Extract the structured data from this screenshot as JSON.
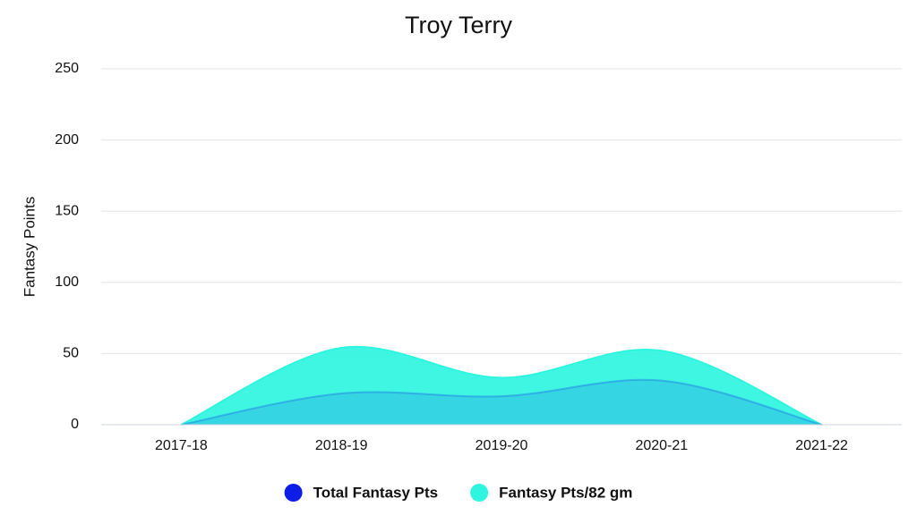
{
  "chart_data": {
    "type": "area",
    "title": "Troy Terry",
    "y_label": "Fantasy Points",
    "categories": [
      "2017-18",
      "2018-19",
      "2019-20",
      "2020-21",
      "2021-22"
    ],
    "series": [
      {
        "name": "Total Fantasy Pts",
        "color": "#0d1de8",
        "values": [
          0,
          22,
          20,
          31,
          0
        ]
      },
      {
        "name": "Fantasy Pts/82 gm",
        "color": "#2ef5e0",
        "values": [
          0,
          54,
          33,
          52,
          0
        ]
      }
    ],
    "ylim": [
      0,
      250
    ],
    "yticks": [
      0,
      50,
      100,
      150,
      200,
      250
    ],
    "grid": true,
    "legend": "bottom"
  }
}
